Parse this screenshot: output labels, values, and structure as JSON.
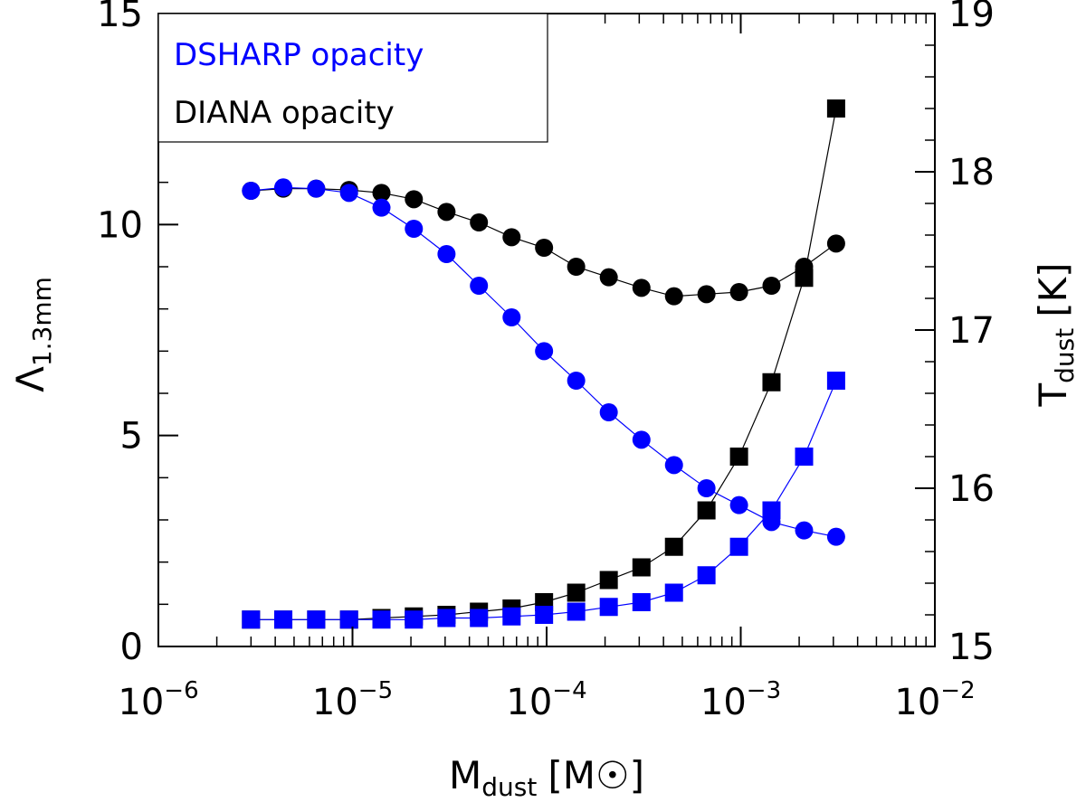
{
  "chart_data": {
    "type": "scatter",
    "title": "",
    "xscale": "log",
    "xlim": [
      1e-06,
      0.01
    ],
    "ylim_left": [
      0,
      15
    ],
    "ylim_right": [
      15,
      19
    ],
    "grid": false,
    "legend_position": "top-left",
    "xlabel": {
      "main": "M",
      "sub": "dust",
      "unit_open": "[M",
      "unit_symbol": "☉",
      "unit_close": "]"
    },
    "ylabel_left": {
      "main": "Λ",
      "sub": "1.3mm"
    },
    "ylabel_right": {
      "main": "T",
      "sub": "dust",
      "unit": "[K]"
    },
    "x_ticks": [
      {
        "value": 1e-06,
        "base": "10",
        "exp": "−6"
      },
      {
        "value": 1e-05,
        "base": "10",
        "exp": "−5"
      },
      {
        "value": 0.0001,
        "base": "10",
        "exp": "−4"
      },
      {
        "value": 0.001,
        "base": "10",
        "exp": "−3"
      },
      {
        "value": 0.01,
        "base": "10",
        "exp": "−2"
      }
    ],
    "y_left_ticks": [
      {
        "value": 0,
        "label": "0"
      },
      {
        "value": 5,
        "label": "5"
      },
      {
        "value": 10,
        "label": "10"
      },
      {
        "value": 15,
        "label": "15"
      }
    ],
    "y_right_ticks": [
      {
        "value": 15,
        "label": "15"
      },
      {
        "value": 16,
        "label": "16"
      },
      {
        "value": 17,
        "label": "17"
      },
      {
        "value": 18,
        "label": "18"
      },
      {
        "value": 19,
        "label": "19"
      }
    ],
    "legend": [
      {
        "label": "DSHARP opacity",
        "color": "#0000ff"
      },
      {
        "label": "DIANA opacity",
        "color": "#000000"
      }
    ],
    "x": [
      3e-06,
      4.4e-06,
      6.5e-06,
      9.6e-06,
      1.41e-05,
      2.07e-05,
      3.05e-05,
      4.48e-05,
      6.6e-05,
      9.7e-05,
      0.000142,
      0.000209,
      0.000308,
      0.000453,
      0.000666,
      0.00098,
      0.00144,
      0.00212,
      0.0031
    ],
    "series": [
      {
        "name": "DIANA Λ1.3mm",
        "axis": "left",
        "marker": "circle",
        "color": "#000000",
        "values": [
          10.8,
          10.85,
          10.85,
          10.82,
          10.75,
          10.6,
          10.3,
          10.05,
          9.7,
          9.45,
          9.0,
          8.75,
          8.5,
          8.3,
          8.35,
          8.4,
          8.55,
          9.0,
          9.55
        ]
      },
      {
        "name": "DSHARP Λ1.3mm",
        "axis": "left",
        "marker": "circle",
        "color": "#0000ff",
        "values": [
          10.8,
          10.88,
          10.85,
          10.75,
          10.4,
          9.9,
          9.3,
          8.55,
          7.8,
          7.0,
          6.3,
          5.55,
          4.9,
          4.3,
          3.75,
          3.35,
          2.95,
          2.75,
          2.6
        ]
      },
      {
        "name": "DIANA T_dust",
        "axis": "right",
        "marker": "square",
        "color": "#000000",
        "values": [
          15.17,
          15.17,
          15.17,
          15.17,
          15.18,
          15.19,
          15.2,
          15.22,
          15.24,
          15.28,
          15.34,
          15.42,
          15.5,
          15.63,
          15.86,
          16.2,
          16.67,
          17.33,
          18.4
        ]
      },
      {
        "name": "DSHARP T_dust",
        "axis": "right",
        "marker": "square",
        "color": "#0000ff",
        "values": [
          15.17,
          15.17,
          15.17,
          15.17,
          15.17,
          15.17,
          15.18,
          15.18,
          15.19,
          15.2,
          15.22,
          15.25,
          15.28,
          15.34,
          15.45,
          15.63,
          15.86,
          16.2,
          16.68
        ]
      }
    ]
  }
}
